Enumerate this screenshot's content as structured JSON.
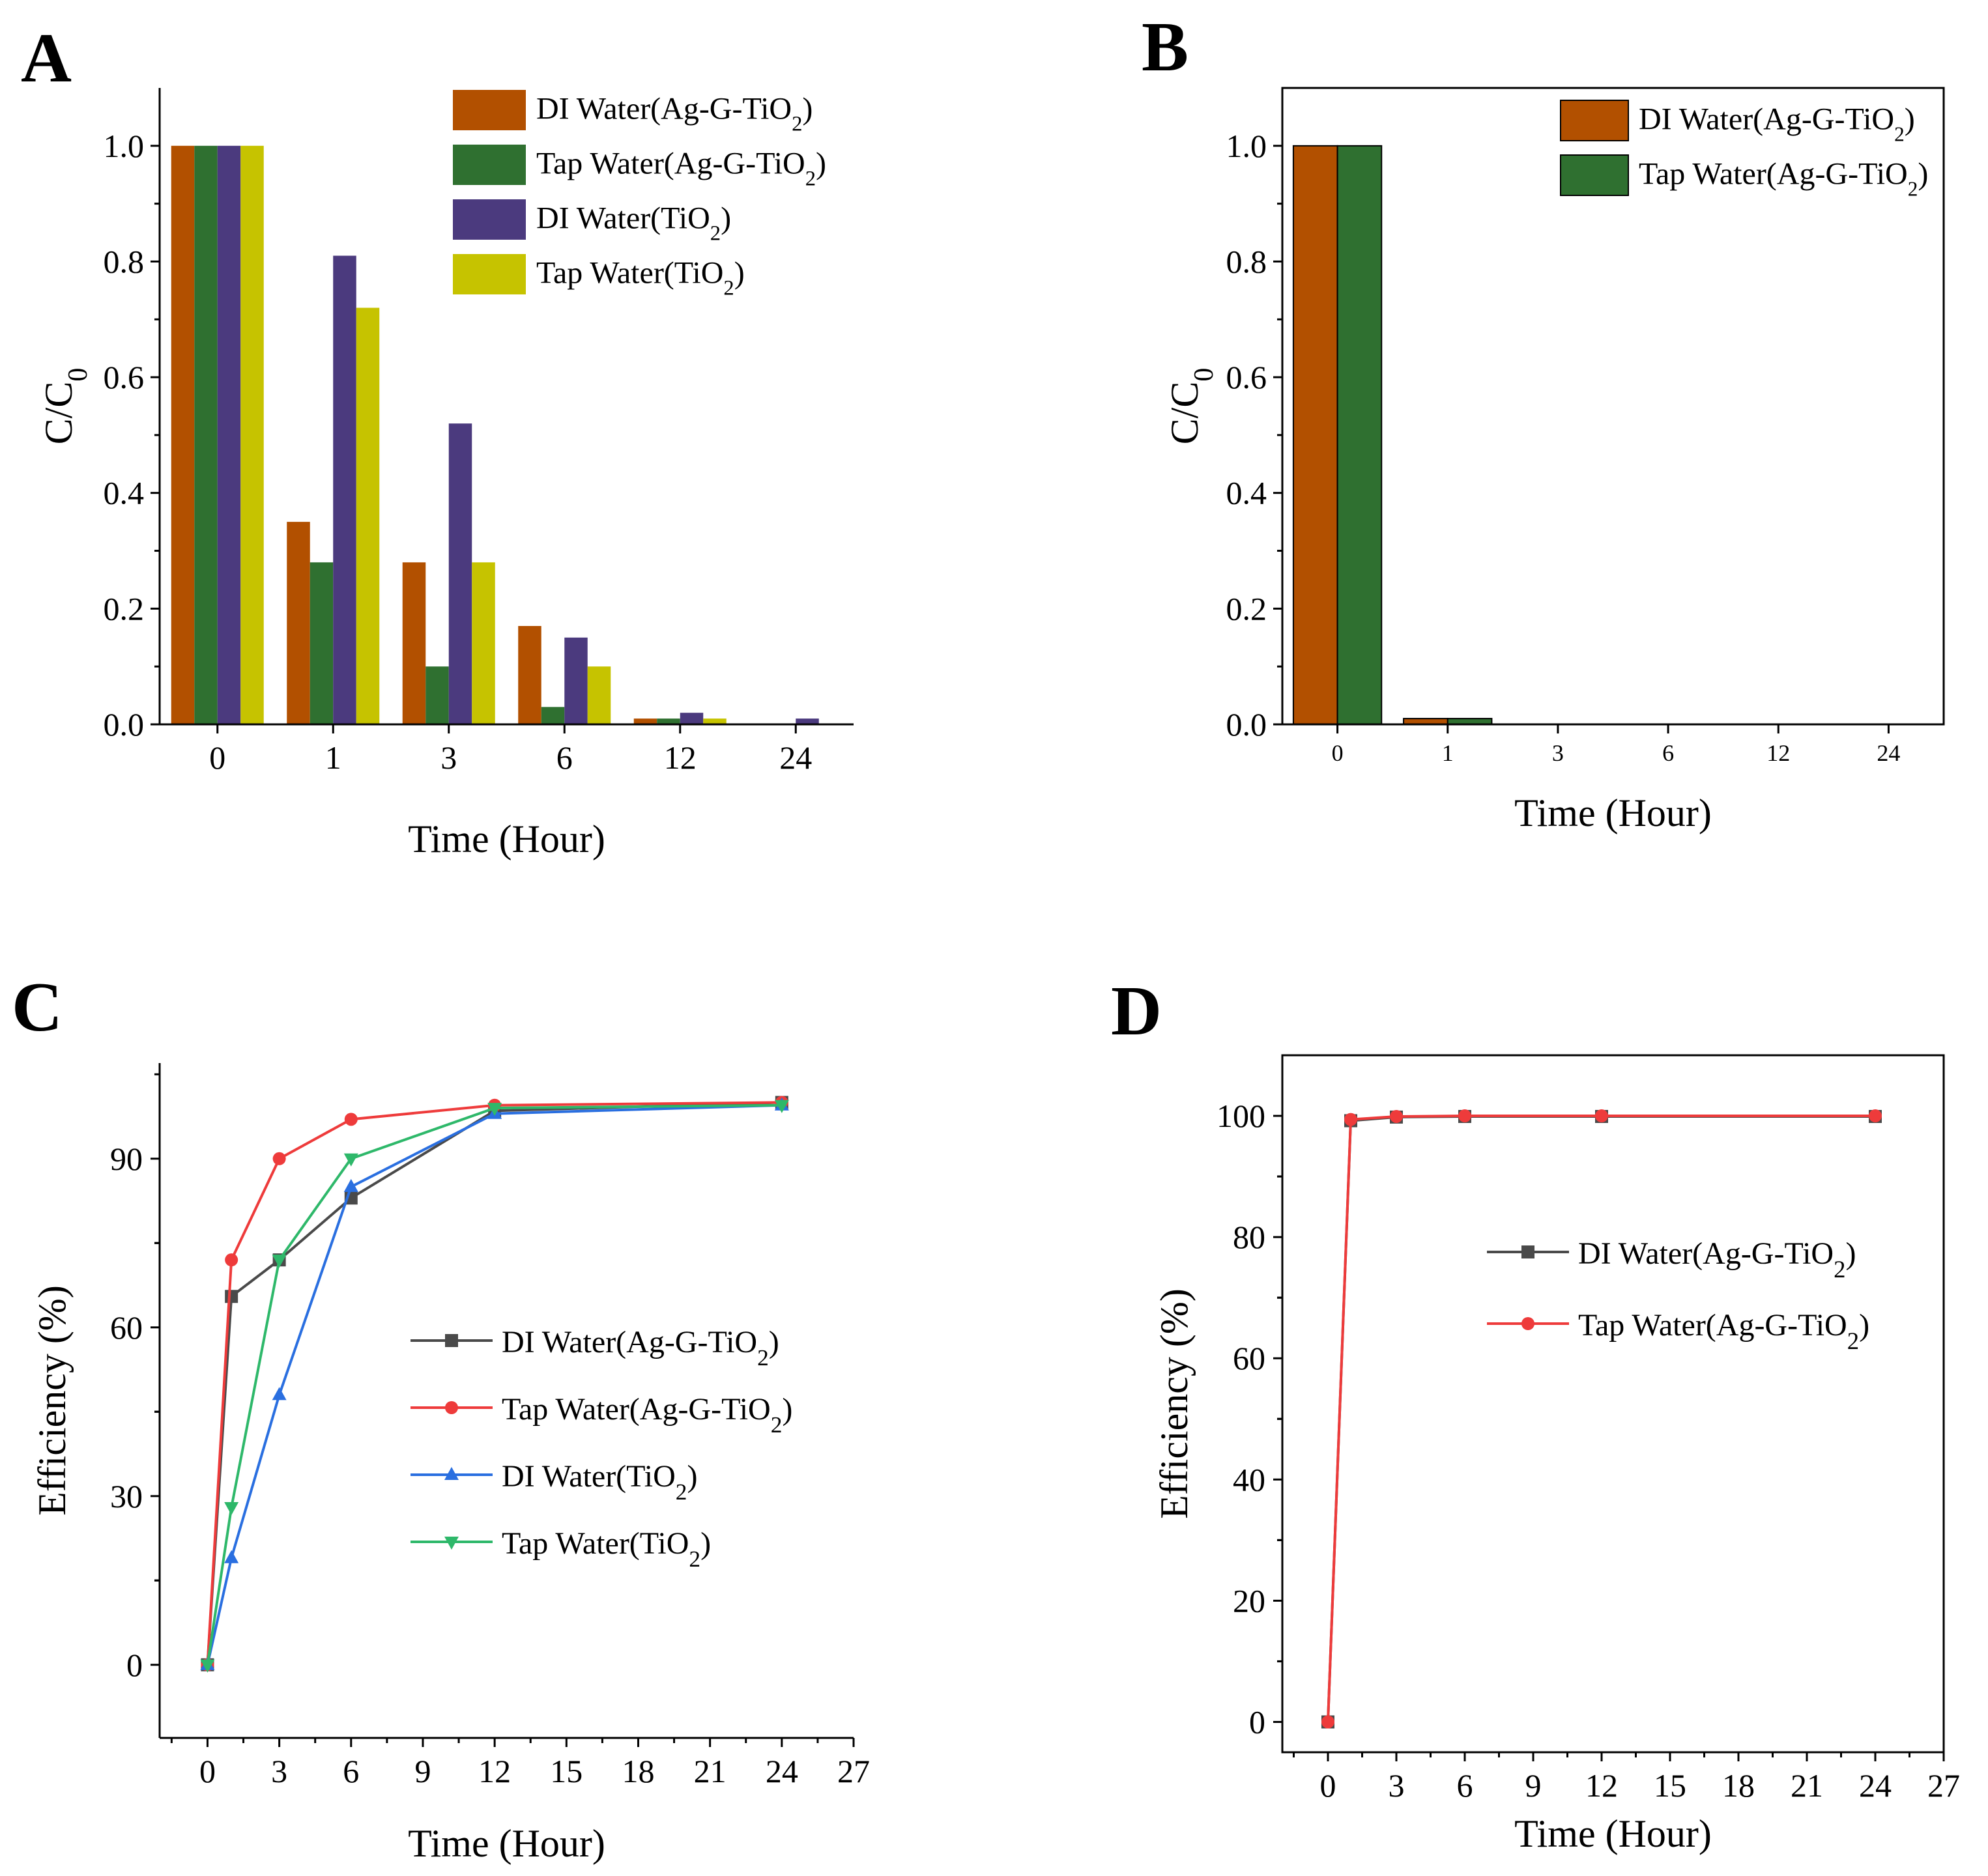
{
  "colors": {
    "orange": "#B25000",
    "green": "#2F7030",
    "purple": "#4B3A7E",
    "yellow": "#C6C300",
    "grey": "#4A4A4A",
    "red": "#EE3B3B",
    "blue": "#2A6FE0",
    "teal": "#2EB86A"
  },
  "chart_data": [
    {
      "id": "A",
      "panel_label": "A",
      "type": "bar",
      "categories": [
        "0",
        "1",
        "3",
        "6",
        "12",
        "24"
      ],
      "ylim": [
        0,
        1.1
      ],
      "yticks": [
        "0.0",
        "0.2",
        "0.4",
        "0.6",
        "0.8",
        "1.0"
      ],
      "ylabel": "C/C",
      "ylabel_sub": "0",
      "xlabel": "Time (Hour)",
      "legend_position": "top-right",
      "series": [
        {
          "name": "DI Water(Ag-G-TiO",
          "name_sub": "2",
          "name_end": ")",
          "color": "orange",
          "values": [
            1.0,
            0.35,
            0.28,
            0.17,
            0.01,
            0.0
          ]
        },
        {
          "name": "Tap Water(Ag-G-TiO",
          "name_sub": "2",
          "name_end": ")",
          "color": "green",
          "values": [
            1.0,
            0.28,
            0.1,
            0.03,
            0.01,
            0.0
          ]
        },
        {
          "name": "DI Water(TiO",
          "name_sub": "2",
          "name_end": ")",
          "color": "purple",
          "values": [
            1.0,
            0.81,
            0.52,
            0.15,
            0.02,
            0.01
          ]
        },
        {
          "name": "Tap Water(TiO",
          "name_sub": "2",
          "name_end": ")",
          "color": "yellow",
          "values": [
            1.0,
            0.72,
            0.28,
            0.1,
            0.01,
            0.0
          ]
        }
      ]
    },
    {
      "id": "B",
      "panel_label": "B",
      "type": "bar",
      "categories": [
        "0",
        "1",
        "3",
        "6",
        "12",
        "24"
      ],
      "ylim": [
        0,
        1.1
      ],
      "yticks": [
        "0.0",
        "0.2",
        "0.4",
        "0.6",
        "0.8",
        "1.0"
      ],
      "ylabel": "C/C",
      "ylabel_sub": "0",
      "xlabel": "Time (Hour)",
      "legend_position": "top-right",
      "series": [
        {
          "name": "DI Water(Ag-G-TiO",
          "name_sub": "2",
          "name_end": ")",
          "color": "orange",
          "values": [
            1.0,
            0.01,
            0.0,
            0.0,
            0.0,
            0.0
          ]
        },
        {
          "name": "Tap Water(Ag-G-TiO",
          "name_sub": "2",
          "name_end": ")",
          "color": "green",
          "values": [
            1.0,
            0.01,
            0.0,
            0.0,
            0.0,
            0.0
          ]
        }
      ]
    },
    {
      "id": "C",
      "panel_label": "C",
      "type": "line",
      "x": [
        0,
        1,
        3,
        6,
        12,
        24
      ],
      "xlim": [
        -2,
        27
      ],
      "xticks": [
        "0",
        "3",
        "6",
        "9",
        "12",
        "15",
        "18",
        "21",
        "24",
        "27"
      ],
      "ylim": [
        -13,
        107
      ],
      "yticks": [
        "0",
        "30",
        "60",
        "90"
      ],
      "ylabel": "Efficiency (%)",
      "xlabel": "Time (Hour)",
      "legend_position": "center-right",
      "series": [
        {
          "name": "DI Water(Ag-G-TiO",
          "name_sub": "2",
          "name_end": ")",
          "color": "grey",
          "marker": "square",
          "values": [
            0,
            65.5,
            72,
            83,
            98.5,
            100
          ]
        },
        {
          "name": "Tap Water(Ag-G-TiO",
          "name_sub": "2",
          "name_end": ")",
          "color": "red",
          "marker": "circle",
          "values": [
            0,
            72,
            90,
            97,
            99.5,
            100
          ]
        },
        {
          "name": "DI Water(TiO",
          "name_sub": "2",
          "name_end": ")",
          "color": "blue",
          "marker": "triangle-up",
          "values": [
            0,
            19,
            48,
            85,
            98,
            99.5
          ]
        },
        {
          "name": "Tap Water(TiO",
          "name_sub": "2",
          "name_end": ")",
          "color": "teal",
          "marker": "triangle-down",
          "values": [
            0,
            28,
            72,
            90,
            99,
            99.5
          ]
        }
      ]
    },
    {
      "id": "D",
      "panel_label": "D",
      "type": "line",
      "x": [
        0,
        1,
        3,
        6,
        12,
        24
      ],
      "xlim": [
        -2,
        27
      ],
      "xticks": [
        "0",
        "3",
        "6",
        "9",
        "12",
        "15",
        "18",
        "21",
        "24",
        "27"
      ],
      "ylim": [
        -5,
        110
      ],
      "yticks": [
        "0",
        "20",
        "40",
        "60",
        "80",
        "100"
      ],
      "ylabel": "Efficiency (%)",
      "xlabel": "Time (Hour)",
      "legend_position": "center-right",
      "series": [
        {
          "name": "DI Water(Ag-G-TiO",
          "name_sub": "2",
          "name_end": ")",
          "color": "grey",
          "marker": "square",
          "values": [
            0,
            99.2,
            99.8,
            99.9,
            99.9,
            99.9
          ]
        },
        {
          "name": "Tap Water(Ag-G-TiO",
          "name_sub": "2",
          "name_end": ")",
          "color": "red",
          "marker": "circle",
          "values": [
            0,
            99.4,
            99.9,
            100,
            100,
            100
          ]
        }
      ]
    }
  ]
}
